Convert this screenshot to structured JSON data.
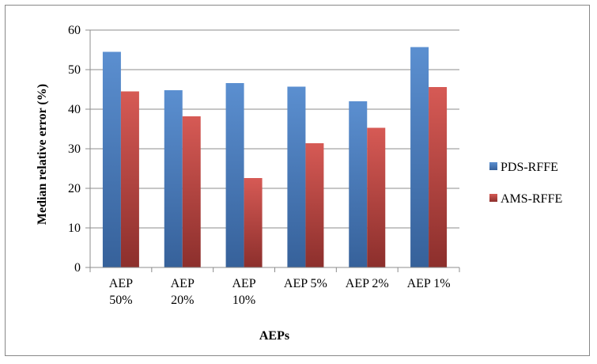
{
  "chart_data": {
    "type": "bar",
    "title": "",
    "xlabel": "AEPs",
    "ylabel": "Median relative error (%)",
    "categories": [
      [
        "AEP",
        "50%"
      ],
      [
        "AEP",
        "20%"
      ],
      [
        "AEP",
        "10%"
      ],
      [
        "AEP 5%"
      ],
      [
        "AEP 2%"
      ],
      [
        "AEP 1%"
      ]
    ],
    "series": [
      {
        "name": "PDS-RFFE",
        "color": "#4a7ebb",
        "values": [
          54.5,
          44.8,
          46.6,
          45.7,
          42.0,
          55.7
        ]
      },
      {
        "name": "AMS-RFFE",
        "color": "#be4b48",
        "values": [
          44.5,
          38.2,
          22.6,
          31.4,
          35.3,
          45.6
        ]
      }
    ],
    "ylim": [
      0,
      60
    ],
    "yticks": [
      0,
      10,
      20,
      30,
      40,
      50,
      60
    ],
    "grid": true,
    "legend": "right"
  }
}
